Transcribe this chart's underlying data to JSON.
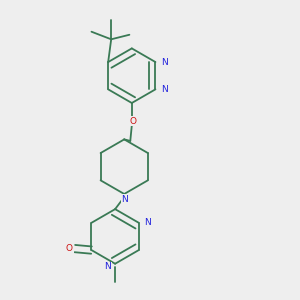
{
  "bg_color": "#eeeeee",
  "bond_color": "#3a7a55",
  "N_color": "#2222dd",
  "O_color": "#cc1111",
  "lw": 1.3,
  "dbo": 0.012,
  "fs": 6.5,
  "xlim": [
    0.15,
    0.85
  ],
  "ylim": [
    0.02,
    1.0
  ]
}
